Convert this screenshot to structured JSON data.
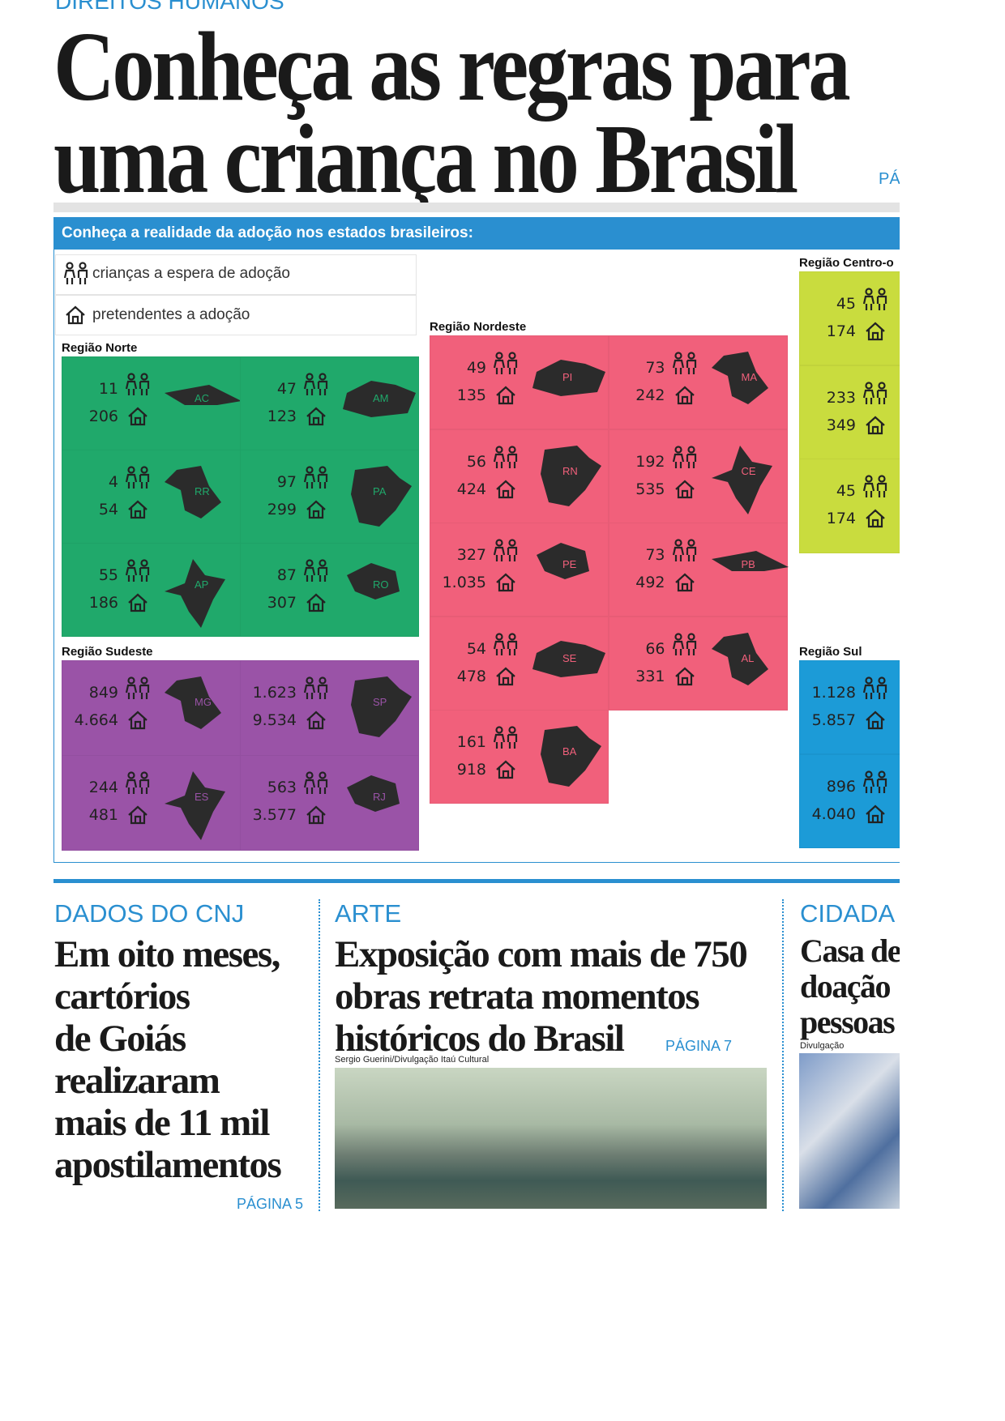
{
  "header": {
    "kicker": "DIREITOS HUMANOS",
    "title_lines": [
      "Conheça as regras para",
      "uma criança no Brasil"
    ],
    "page_ref": "PÁ"
  },
  "infographic": {
    "banner": "Conheça a realidade da adoção nos estados brasileiros:",
    "legend": {
      "children": "crianças a espera de adoção",
      "applicants": "pretendentes a adoção"
    },
    "regions": [
      {
        "name": "Região Norte",
        "color": "#20a96b",
        "states": [
          {
            "code": "AC",
            "children": "11",
            "applicants": "206"
          },
          {
            "code": "AM",
            "children": "47",
            "applicants": "123"
          },
          {
            "code": "RR",
            "children": "4",
            "applicants": "54"
          },
          {
            "code": "PA",
            "children": "97",
            "applicants": "299"
          },
          {
            "code": "AP",
            "children": "55",
            "applicants": "186"
          },
          {
            "code": "RO",
            "children": "87",
            "applicants": "307"
          }
        ]
      },
      {
        "name": "Região Nordeste",
        "color": "#f1607b",
        "states": [
          {
            "code": "PI",
            "children": "49",
            "applicants": "135"
          },
          {
            "code": "MA",
            "children": "73",
            "applicants": "242"
          },
          {
            "code": "RN",
            "children": "56",
            "applicants": "424"
          },
          {
            "code": "CE",
            "children": "192",
            "applicants": "535"
          },
          {
            "code": "PE",
            "children": "327",
            "applicants": "1.035"
          },
          {
            "code": "PB",
            "children": "73",
            "applicants": "492"
          },
          {
            "code": "SE",
            "children": "54",
            "applicants": "478"
          },
          {
            "code": "AL",
            "children": "66",
            "applicants": "331"
          },
          {
            "code": "BA",
            "children": "161",
            "applicants": "918"
          }
        ]
      },
      {
        "name": "Região Sudeste",
        "color": "#9a53a7",
        "states": [
          {
            "code": "MG",
            "children": "849",
            "applicants": "4.664"
          },
          {
            "code": "SP",
            "children": "1.623",
            "applicants": "9.534"
          },
          {
            "code": "ES",
            "children": "244",
            "applicants": "481"
          },
          {
            "code": "RJ",
            "children": "563",
            "applicants": "3.577"
          }
        ]
      },
      {
        "name": "Região Centro-o",
        "color": "#c9dc3e",
        "states": [
          {
            "children": "45",
            "applicants": "174"
          },
          {
            "children": "233",
            "applicants": "349"
          },
          {
            "children": "45",
            "applicants": "174"
          }
        ]
      },
      {
        "name": "Região Sul",
        "color": "#1c9bd7",
        "states": [
          {
            "children": "1.128",
            "applicants": "5.857"
          },
          {
            "children": "896",
            "applicants": "4.040"
          }
        ]
      }
    ]
  },
  "articles": [
    {
      "section": "DADOS DO CNJ",
      "headline_lines": [
        "Em oito meses,",
        "cartórios",
        "de Goiás",
        "realizaram",
        "mais de 11 mil",
        "apostilamentos"
      ],
      "page": "PÁGINA 5"
    },
    {
      "section": "ARTE",
      "headline_lines": [
        "Exposição com mais de 750",
        "obras retrata momentos",
        "históricos do Brasil"
      ],
      "page": "PÁGINA 7",
      "credit": "Sergio Guerini/Divulgação Itaú Cultural"
    },
    {
      "section": "CIDADA",
      "headline_lines": [
        "Casa de",
        "doação",
        "pessoas"
      ],
      "credit": "Divulgação"
    }
  ]
}
